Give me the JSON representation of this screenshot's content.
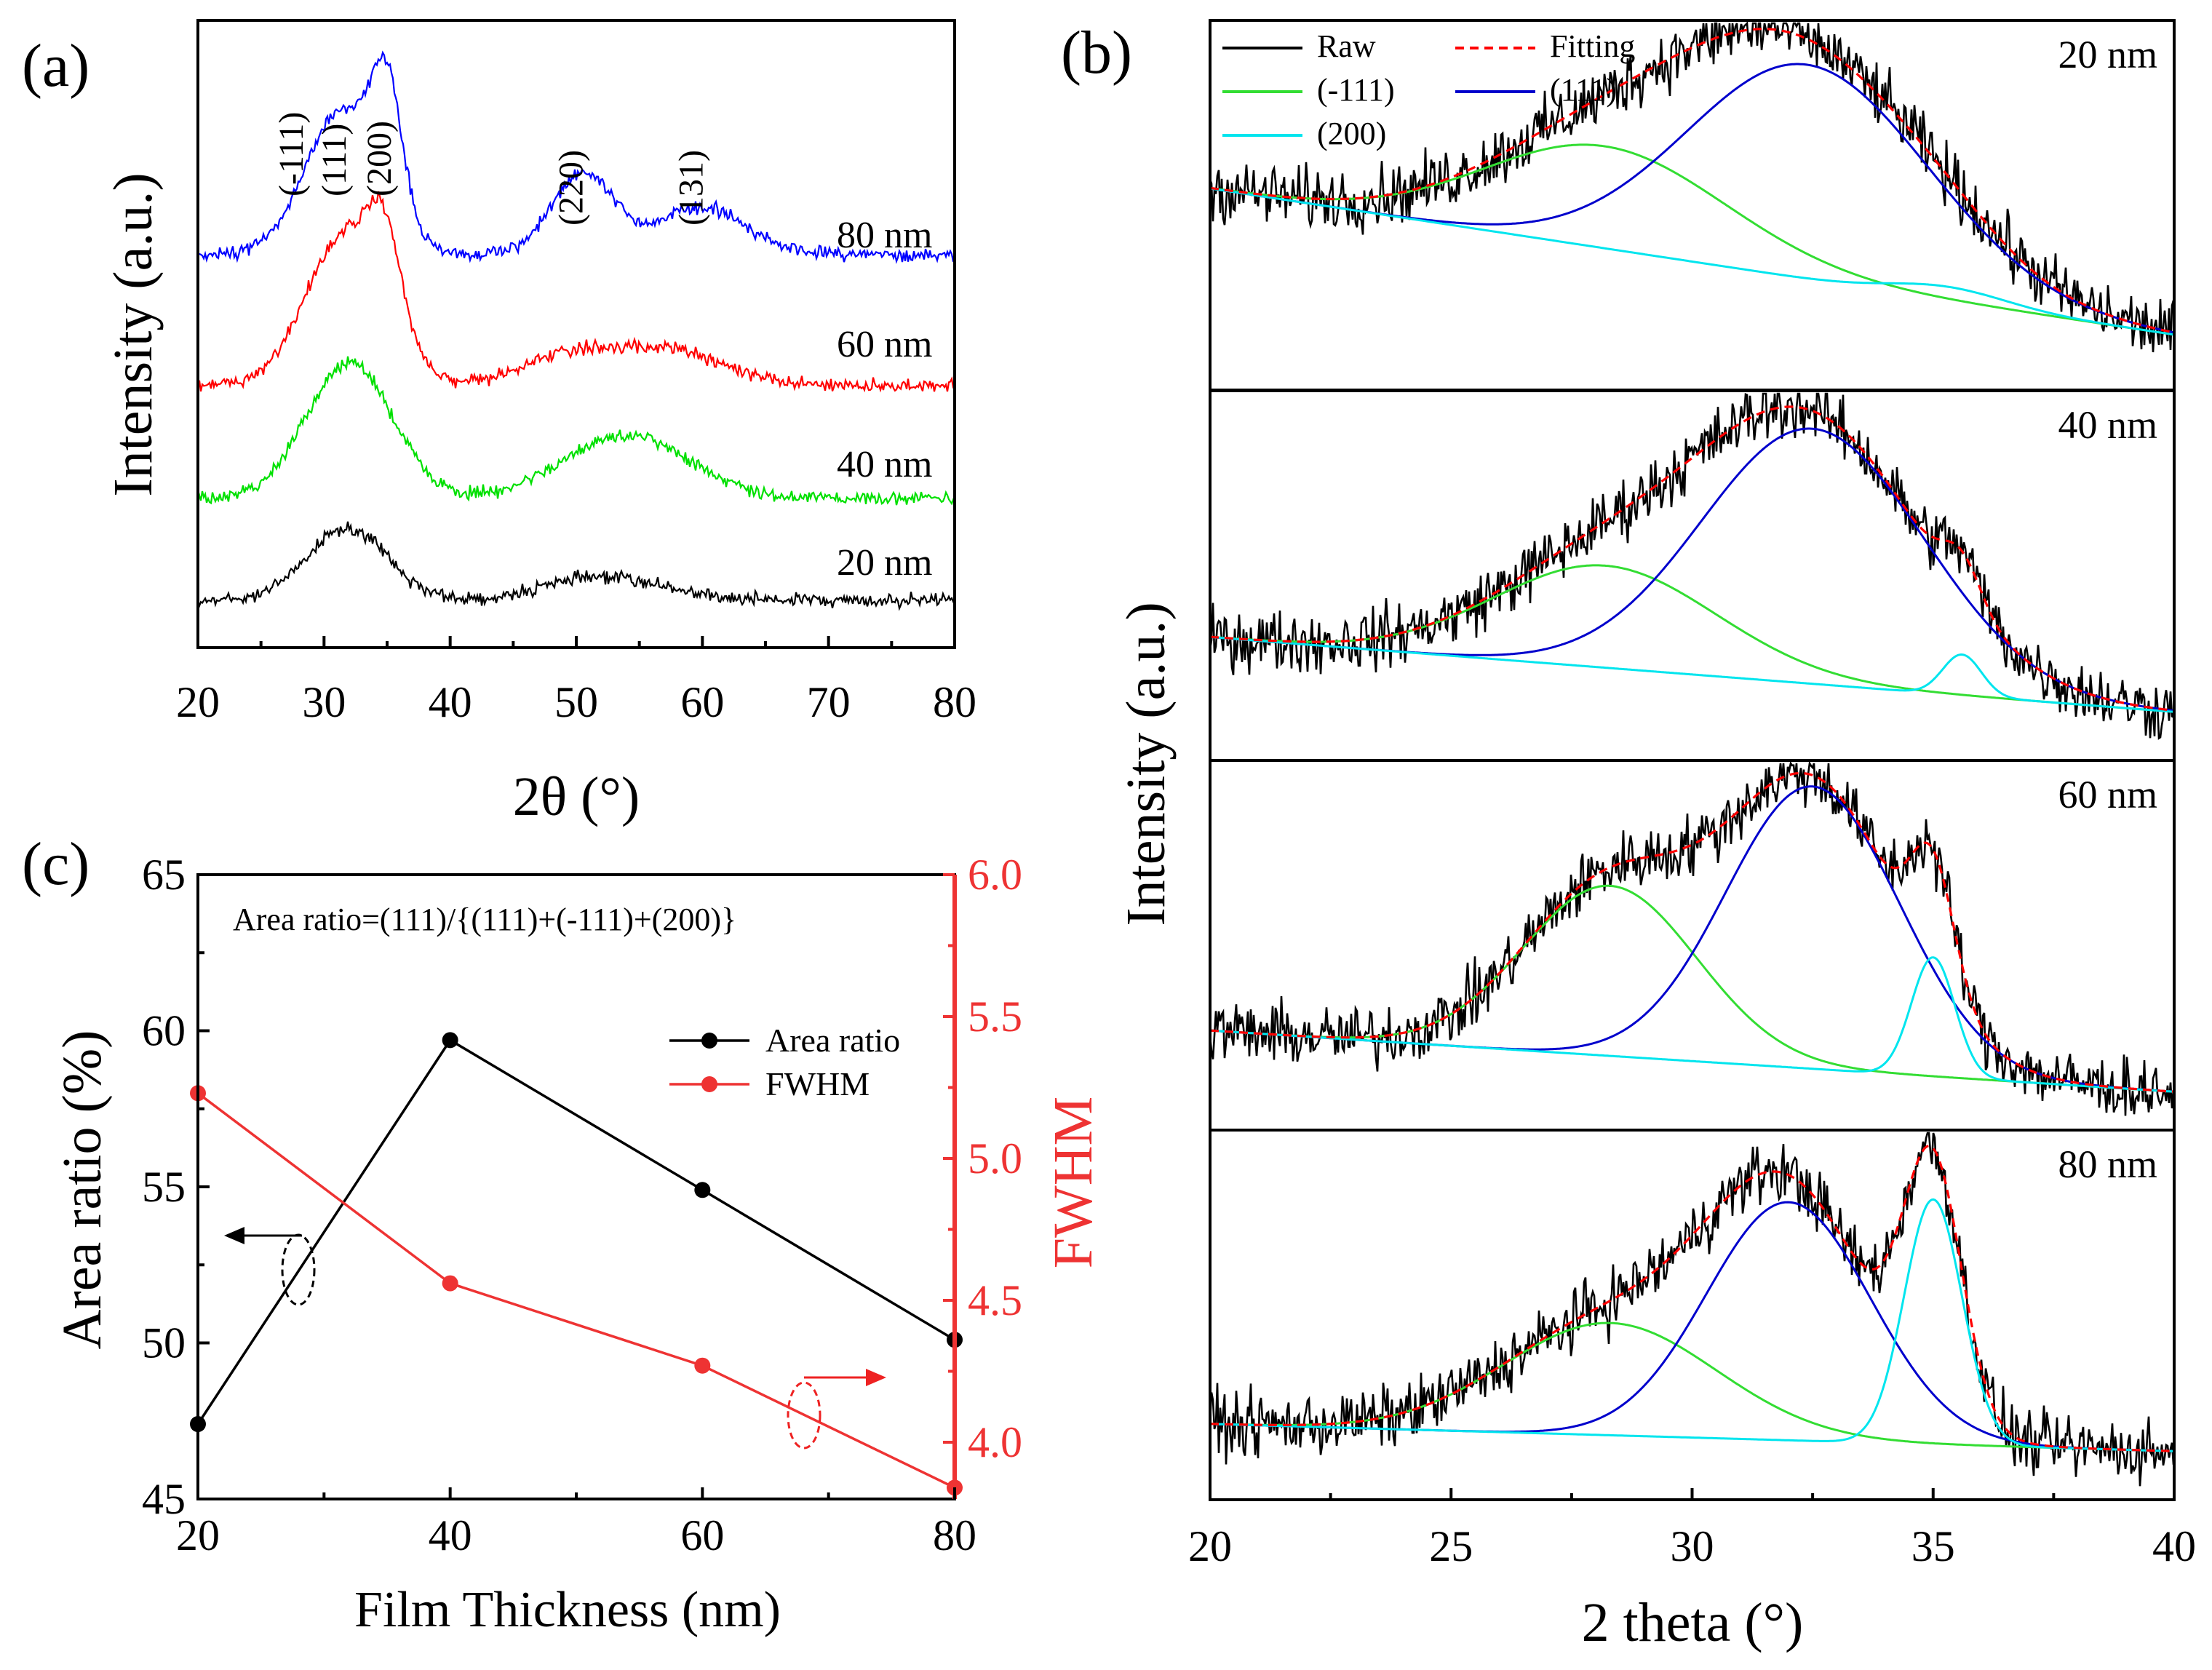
{
  "panel_a": {
    "label": "(a)",
    "chart_data": {
      "type": "line",
      "title": "",
      "xlabel": "2θ (°)",
      "ylabel": "Intensity (a.u.)",
      "xlim": [
        20,
        80
      ],
      "x_ticks": [
        "20",
        "30",
        "40",
        "50",
        "60",
        "70",
        "80"
      ],
      "peak_labels": [
        {
          "text": "(-111)",
          "x": 28.3
        },
        {
          "text": "(111)",
          "x": 31.7
        },
        {
          "text": "(200)",
          "x": 35.3
        },
        {
          "text": "(220)",
          "x": 50.5
        },
        {
          "text": "(131)",
          "x": 60.0
        }
      ],
      "series": [
        {
          "name": "20 nm",
          "color": "#000000",
          "offset": 0,
          "peaks": [
            [
              31.8,
              0.45,
              3.2
            ],
            [
              50.5,
              0.1,
              4
            ],
            [
              55,
              0.07,
              4
            ]
          ]
        },
        {
          "name": "40 nm",
          "color": "#00e000",
          "offset": 1,
          "peaks": [
            [
              32,
              0.85,
              3.4
            ],
            [
              54,
              0.4,
              5
            ]
          ]
        },
        {
          "name": "60 nm",
          "color": "#ff0000",
          "offset": 2,
          "peaks": [
            [
              31.8,
              0.95,
              3.2
            ],
            [
              34.8,
              0.5,
              1.3
            ],
            [
              50,
              0.2,
              4
            ],
            [
              58,
              0.2,
              4
            ]
          ]
        },
        {
          "name": "80 nm",
          "color": "#0000ff",
          "offset": 3,
          "peaks": [
            [
              31.5,
              0.9,
              3
            ],
            [
              35,
              0.75,
              1.2
            ],
            [
              50.5,
              0.5,
              2.5
            ],
            [
              60,
              0.3,
              3.5
            ]
          ]
        }
      ]
    }
  },
  "panel_b": {
    "label": "(b)",
    "chart_data": {
      "type": "line",
      "xlabel": "2 theta (°)",
      "ylabel": "Intensity (a.u.)",
      "xlim": [
        20,
        40
      ],
      "x_ticks": [
        "20",
        "25",
        "30",
        "35",
        "40"
      ],
      "legend": [
        {
          "name": "Raw",
          "color": "#000000",
          "dash": false
        },
        {
          "name": "Fitting",
          "color": "#ff0000",
          "dash": true
        },
        {
          "name": "(-111)",
          "color": "#33dd33",
          "dash": false
        },
        {
          "name": "(111)",
          "color": "#0000cc",
          "dash": false
        },
        {
          "name": "(200)",
          "color": "#00e5ee",
          "dash": false
        }
      ],
      "subplots": [
        {
          "label": "20 nm",
          "base_start": 0.55,
          "base_end": 0.12,
          "m111": [
            28.2,
            0.3,
            2.5
          ],
          "p111": [
            32.4,
            0.63,
            2.5
          ],
          "p200": [
            35.3,
            0.04,
            1.2
          ]
        },
        {
          "label": "40 nm",
          "base_start": 0.32,
          "base_end": 0.1,
          "m111": [
            28.2,
            0.3,
            2.3
          ],
          "p111": [
            32.5,
            0.75,
            2.3
          ],
          "p200": [
            35.6,
            0.12,
            0.4
          ]
        },
        {
          "label": "60 nm",
          "base_start": 0.25,
          "base_end": 0.07,
          "m111": [
            28.3,
            0.5,
            1.8
          ],
          "p111": [
            32.5,
            0.83,
            1.8
          ],
          "p200": [
            35.0,
            0.35,
            0.45
          ]
        },
        {
          "label": "80 nm",
          "base_start": 0.18,
          "base_end": 0.1,
          "m111": [
            28.3,
            0.33,
            2.2
          ],
          "p111": [
            32.0,
            0.7,
            1.7
          ],
          "p200": [
            35.0,
            0.72,
            0.6
          ]
        }
      ]
    }
  },
  "panel_c": {
    "label": "(c)",
    "chart_data": {
      "type": "line",
      "annotation": "Area ratio=(111)/{(111)+(-111)+(200)}",
      "xlabel": "Film Thickness (nm)",
      "ylabel_left": "Area ratio (%)",
      "ylabel_right": "FWHM",
      "xlim": [
        20,
        80
      ],
      "ylim_left": [
        45,
        65
      ],
      "ylim_right": [
        3.8,
        6.0
      ],
      "x_ticks": [
        "20",
        "40",
        "60",
        "80"
      ],
      "y_left_ticks": [
        "45",
        "50",
        "55",
        "60",
        "65"
      ],
      "y_right_ticks": [
        "4.0",
        "4.5",
        "5.0",
        "5.5",
        "6.0"
      ],
      "x": [
        20,
        40,
        60,
        80
      ],
      "series": [
        {
          "name": "Area ratio",
          "axis": "left",
          "color": "#000000",
          "values": [
            47.4,
            59.7,
            54.9,
            50.1
          ]
        },
        {
          "name": "FWHM",
          "axis": "right",
          "color": "#ee3333",
          "values": [
            5.23,
            4.56,
            4.27,
            3.84
          ]
        }
      ]
    }
  }
}
